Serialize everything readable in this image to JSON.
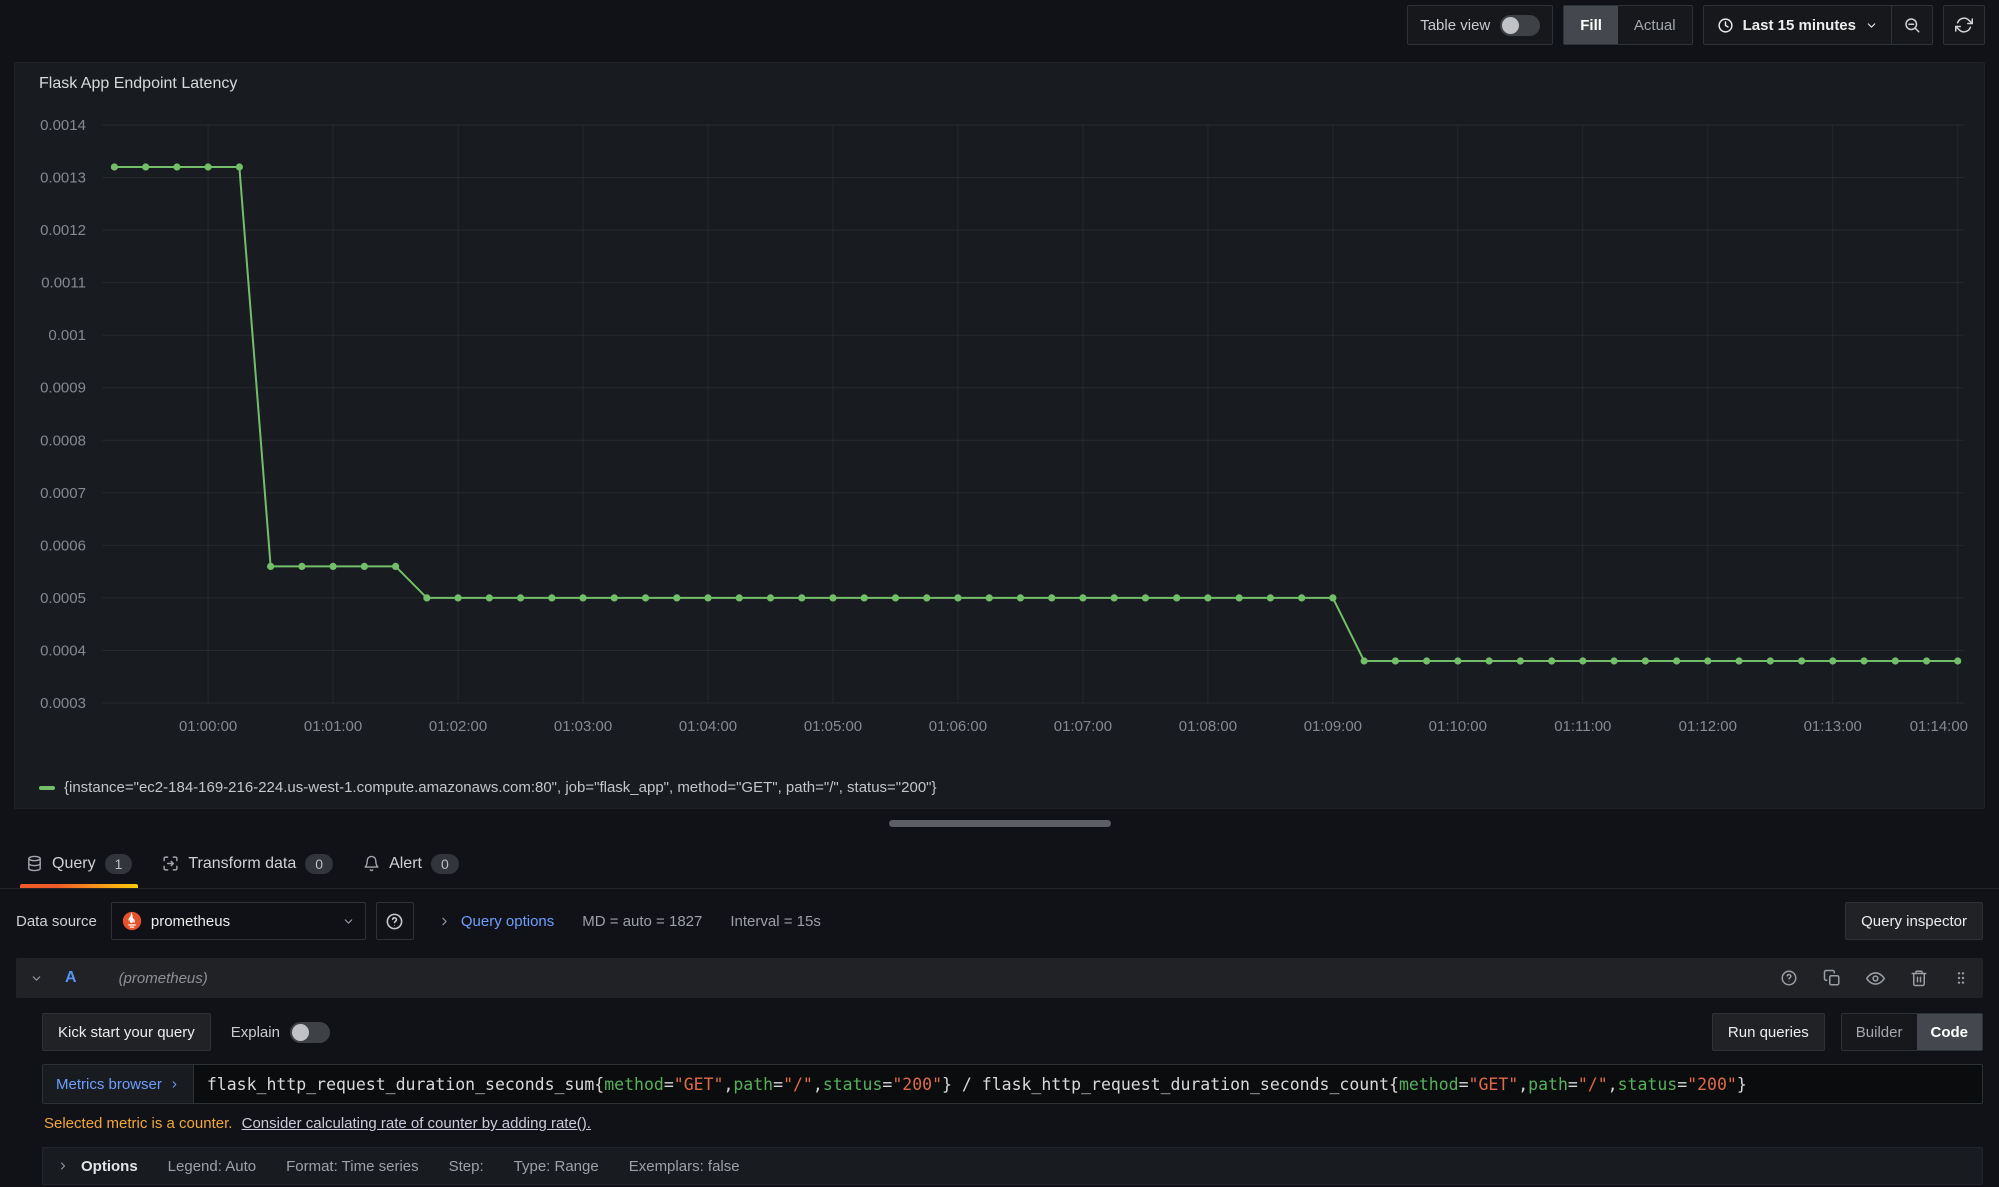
{
  "toolbar": {
    "table_view_label": "Table view",
    "fill_label": "Fill",
    "actual_label": "Actual",
    "time_range_label": "Last 15 minutes"
  },
  "panel": {
    "title": "Flask App Endpoint Latency",
    "legend": "{instance=\"ec2-184-169-216-224.us-west-1.compute.amazonaws.com:80\", job=\"flask_app\", method=\"GET\", path=\"/\", status=\"200\"}"
  },
  "chart_data": {
    "type": "line",
    "title": "Flask App Endpoint Latency",
    "series_name": "{instance=\"ec2-184-169-216-224.us-west-1.compute.amazonaws.com:80\", job=\"flask_app\", method=\"GET\", path=\"/\", status=\"200\"}",
    "series_color": "#73bf69",
    "legend_position": "bottom",
    "grid": true,
    "ylim": [
      0.0003,
      0.0014
    ],
    "xlim_seconds": [
      3549,
      4443
    ],
    "x_start_seconds": 3555,
    "step_seconds": 15,
    "y_ticks": [
      {
        "v": 0.0003,
        "label": "0.0003"
      },
      {
        "v": 0.0004,
        "label": "0.0004"
      },
      {
        "v": 0.0005,
        "label": "0.0005"
      },
      {
        "v": 0.0006,
        "label": "0.0006"
      },
      {
        "v": 0.0007,
        "label": "0.0007"
      },
      {
        "v": 0.0008,
        "label": "0.0008"
      },
      {
        "v": 0.0009,
        "label": "0.0009"
      },
      {
        "v": 0.001,
        "label": "0.001"
      },
      {
        "v": 0.0011,
        "label": "0.0011"
      },
      {
        "v": 0.0012,
        "label": "0.0012"
      },
      {
        "v": 0.0013,
        "label": "0.0013"
      },
      {
        "v": 0.0014,
        "label": "0.0014"
      }
    ],
    "x_ticks": [
      {
        "v": 3600,
        "label": "01:00:00"
      },
      {
        "v": 3660,
        "label": "01:01:00"
      },
      {
        "v": 3720,
        "label": "01:02:00"
      },
      {
        "v": 3780,
        "label": "01:03:00"
      },
      {
        "v": 3840,
        "label": "01:04:00"
      },
      {
        "v": 3900,
        "label": "01:05:00"
      },
      {
        "v": 3960,
        "label": "01:06:00"
      },
      {
        "v": 4020,
        "label": "01:07:00"
      },
      {
        "v": 4080,
        "label": "01:08:00"
      },
      {
        "v": 4140,
        "label": "01:09:00"
      },
      {
        "v": 4200,
        "label": "01:10:00"
      },
      {
        "v": 4260,
        "label": "01:11:00"
      },
      {
        "v": 4320,
        "label": "01:12:00"
      },
      {
        "v": 4380,
        "label": "01:13:00"
      },
      {
        "v": 4440,
        "label": "01:14:00"
      }
    ],
    "values": [
      0.00132,
      0.00132,
      0.00132,
      0.00132,
      0.00132,
      0.00056,
      0.00056,
      0.00056,
      0.00056,
      0.00056,
      0.0005,
      0.0005,
      0.0005,
      0.0005,
      0.0005,
      0.0005,
      0.0005,
      0.0005,
      0.0005,
      0.0005,
      0.0005,
      0.0005,
      0.0005,
      0.0005,
      0.0005,
      0.0005,
      0.0005,
      0.0005,
      0.0005,
      0.0005,
      0.0005,
      0.0005,
      0.0005,
      0.0005,
      0.0005,
      0.0005,
      0.0005,
      0.0005,
      0.0005,
      0.0005,
      0.00038,
      0.00038,
      0.00038,
      0.00038,
      0.00038,
      0.00038,
      0.00038,
      0.00038,
      0.00038,
      0.00038,
      0.00038,
      0.00038,
      0.00038,
      0.00038,
      0.00038,
      0.00038,
      0.00038,
      0.00038,
      0.00038,
      0.00038
    ]
  },
  "tabs": [
    {
      "label": "Query",
      "count": "1"
    },
    {
      "label": "Transform data",
      "count": "0"
    },
    {
      "label": "Alert",
      "count": "0"
    }
  ],
  "datasource_row": {
    "label": "Data source",
    "name": "prometheus",
    "query_options_label": "Query options",
    "md_text": "MD = auto = 1827",
    "interval_text": "Interval = 15s",
    "query_inspector_label": "Query inspector"
  },
  "query_row": {
    "ref_id": "A",
    "datasource_hint": "(prometheus)"
  },
  "editor": {
    "kick_start_label": "Kick start your query",
    "explain_label": "Explain",
    "run_queries_label": "Run queries",
    "builder_label": "Builder",
    "code_label": "Code",
    "metrics_browser_label": "Metrics browser",
    "query_tokens": [
      {
        "t": "flask_http_request_duration_seconds_sum{",
        "c": "plain"
      },
      {
        "t": "method",
        "c": "label"
      },
      {
        "t": "=",
        "c": "plain"
      },
      {
        "t": "\"GET\"",
        "c": "string"
      },
      {
        "t": ",",
        "c": "plain"
      },
      {
        "t": "path",
        "c": "label"
      },
      {
        "t": "=",
        "c": "plain"
      },
      {
        "t": "\"/\"",
        "c": "string"
      },
      {
        "t": ",",
        "c": "plain"
      },
      {
        "t": "status",
        "c": "label"
      },
      {
        "t": "=",
        "c": "plain"
      },
      {
        "t": "\"200\"",
        "c": "string"
      },
      {
        "t": "} / flask_http_request_duration_seconds_count{",
        "c": "plain"
      },
      {
        "t": "method",
        "c": "label"
      },
      {
        "t": "=",
        "c": "plain"
      },
      {
        "t": "\"GET\"",
        "c": "string"
      },
      {
        "t": ",",
        "c": "plain"
      },
      {
        "t": "path",
        "c": "label"
      },
      {
        "t": "=",
        "c": "plain"
      },
      {
        "t": "\"/\"",
        "c": "string"
      },
      {
        "t": ",",
        "c": "plain"
      },
      {
        "t": "status",
        "c": "label"
      },
      {
        "t": "=",
        "c": "plain"
      },
      {
        "t": "\"200\"",
        "c": "string"
      },
      {
        "t": "}",
        "c": "plain"
      }
    ],
    "warning": {
      "prefix": "Selected metric is a counter.",
      "link": "Consider calculating rate of counter by adding rate()."
    },
    "options_label": "Options",
    "options": [
      "Legend: Auto",
      "Format: Time series",
      "Step:",
      "Type: Range",
      "Exemplars: false"
    ]
  }
}
